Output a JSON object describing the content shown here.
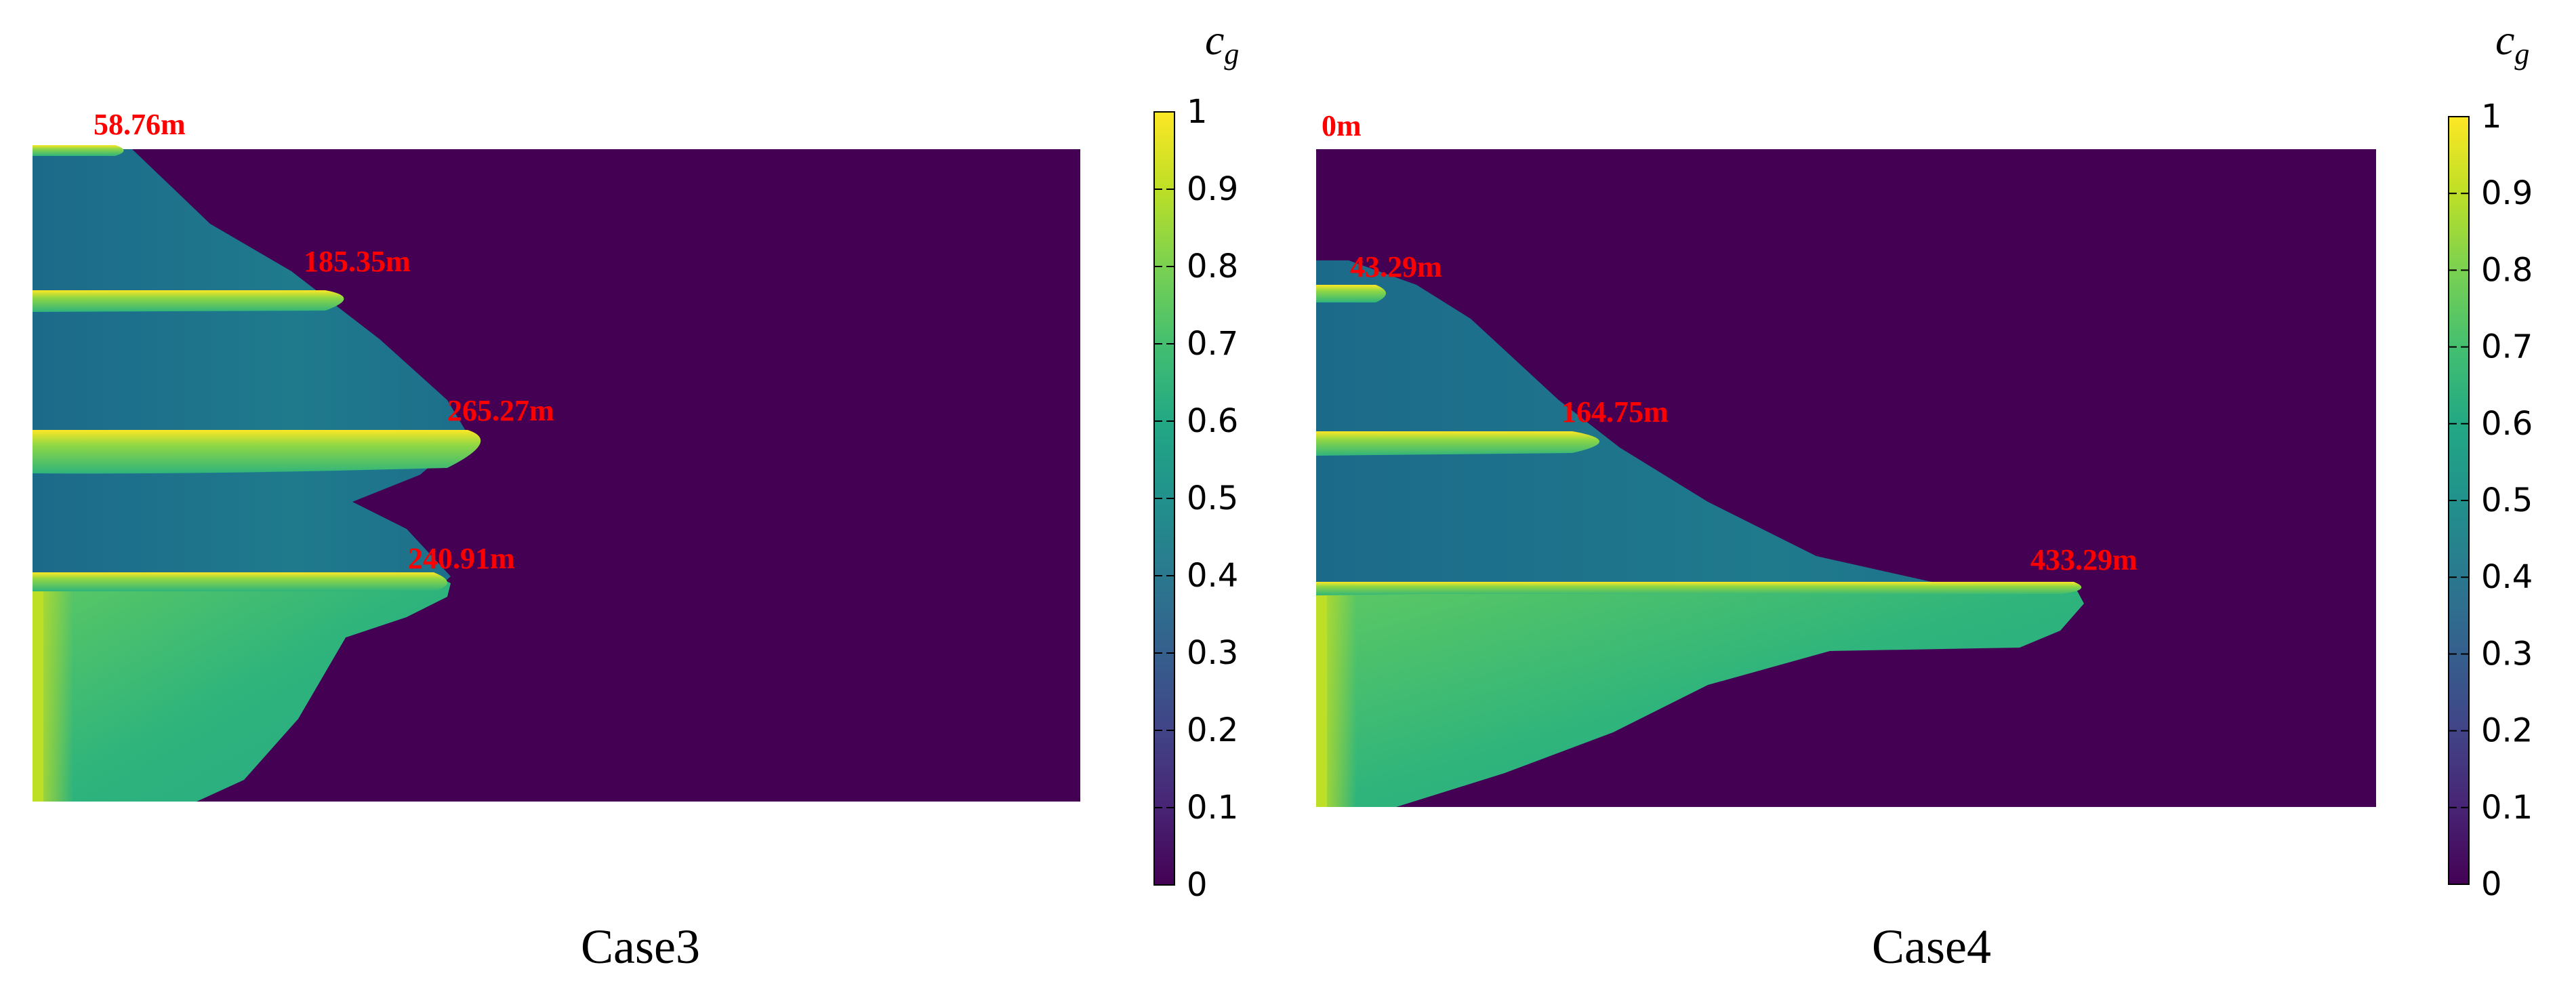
{
  "colors": {
    "background": "#440154",
    "channel_low": "#1f6f8b",
    "channel_mid": "#22958a",
    "vein": "#35b779",
    "vein_hi": "#90d743",
    "peak": "#fde725",
    "annotation": "#ff0000"
  },
  "colorbar": {
    "title": "c",
    "subscript": "g",
    "ticks": [
      "0",
      "0.1",
      "0.2",
      "0.3",
      "0.4",
      "0.5",
      "0.6",
      "0.7",
      "0.8",
      "0.9",
      "1"
    ],
    "range": [
      0,
      1
    ],
    "colormap": "viridis"
  },
  "chart_data": [
    {
      "type": "heatmap",
      "caption": "Case3",
      "value_range": [
        0,
        1
      ],
      "annotations": [
        "58.76m",
        "185.35m",
        "265.27m",
        "240.91m"
      ]
    },
    {
      "type": "heatmap",
      "caption": "Case4",
      "value_range": [
        0,
        1
      ],
      "annotations": [
        "0m",
        "43.29m",
        "164.75m",
        "433.29m"
      ]
    }
  ]
}
